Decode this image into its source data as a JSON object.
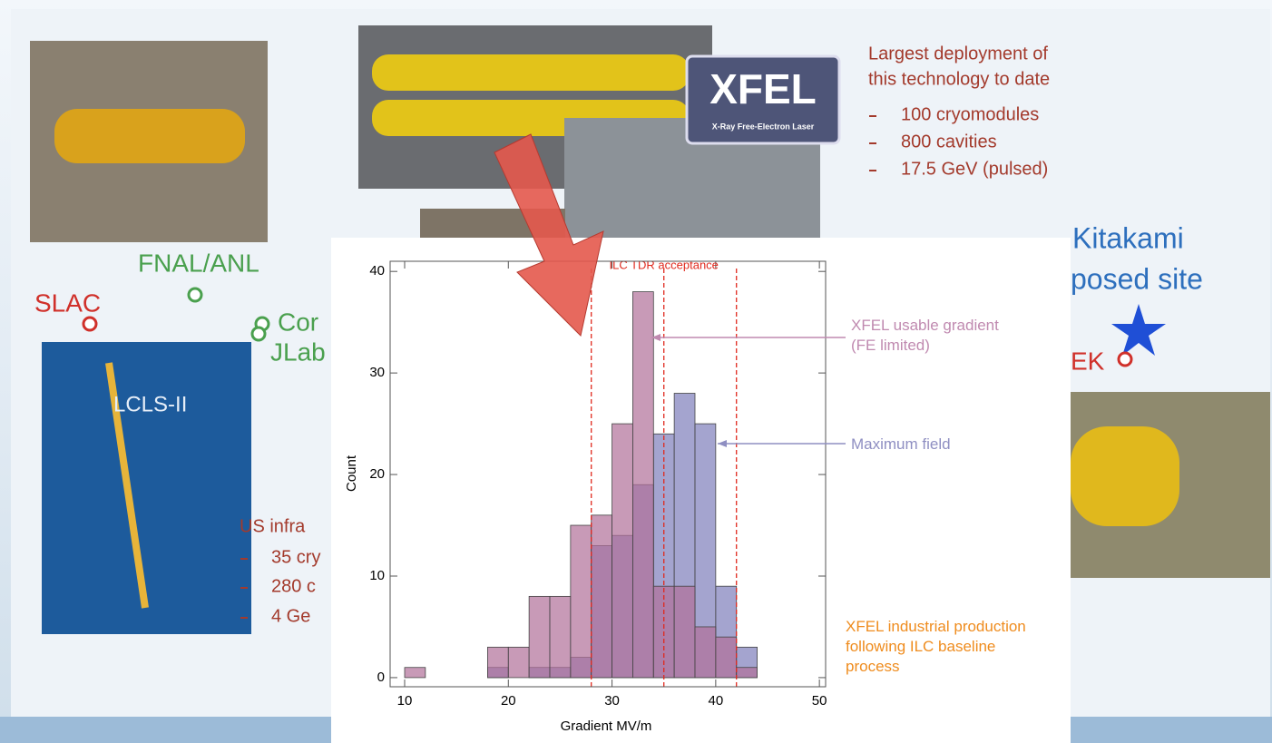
{
  "slide": {
    "xfel_heading": [
      "Largest deployment of",
      "this technology to date"
    ],
    "xfel_items": [
      "100 cryomodules",
      "800 cavities",
      "17.5 GeV (pulsed)"
    ],
    "xfel_logo": "XFEL",
    "xfel_logo_sub": "X-Ray Free-Electron Laser",
    "fnal": "FNAL/ANL",
    "slac": "SLAC",
    "cornell": "Cor",
    "jlab": "JLab",
    "lcls": "LCLS-II",
    "us_heading": "US infra",
    "us_items": [
      "35 cry",
      "280 c",
      "4 Ge"
    ],
    "kitakami": "Kitakami",
    "proposed": "posed site",
    "kek": "EK"
  },
  "chart_data": {
    "type": "histogram",
    "xlabel": "Gradient MV/m",
    "ylabel": "Count",
    "bins": [
      10,
      12,
      14,
      16,
      18,
      20,
      22,
      24,
      26,
      28,
      30,
      32,
      34,
      36,
      38,
      40,
      42,
      44,
      46,
      48,
      50
    ],
    "series": [
      {
        "name": "Maximum field",
        "color": "#7d7dbb",
        "values": [
          0,
          0,
          0,
          0,
          1,
          0,
          1,
          1,
          2,
          13,
          14,
          19,
          24,
          28,
          25,
          9,
          3,
          0,
          0,
          0
        ]
      },
      {
        "name": "XFEL usable gradient (FE limited)",
        "color": "#b16f98",
        "values": [
          1,
          0,
          0,
          0,
          3,
          3,
          8,
          8,
          15,
          16,
          25,
          38,
          9,
          9,
          5,
          4,
          1,
          0,
          0,
          0
        ]
      }
    ],
    "acceptance_label": "ILC TDR acceptance",
    "acceptance_lines": [
      28,
      35,
      42
    ],
    "note": "XFEL industrial production following ILC baseline process",
    "xlim": [
      8.6,
      50.6
    ],
    "ylim": [
      -0.9,
      41
    ],
    "xticks": [
      10,
      20,
      30,
      40,
      50
    ],
    "yticks": [
      0,
      10,
      20,
      30,
      40
    ]
  }
}
